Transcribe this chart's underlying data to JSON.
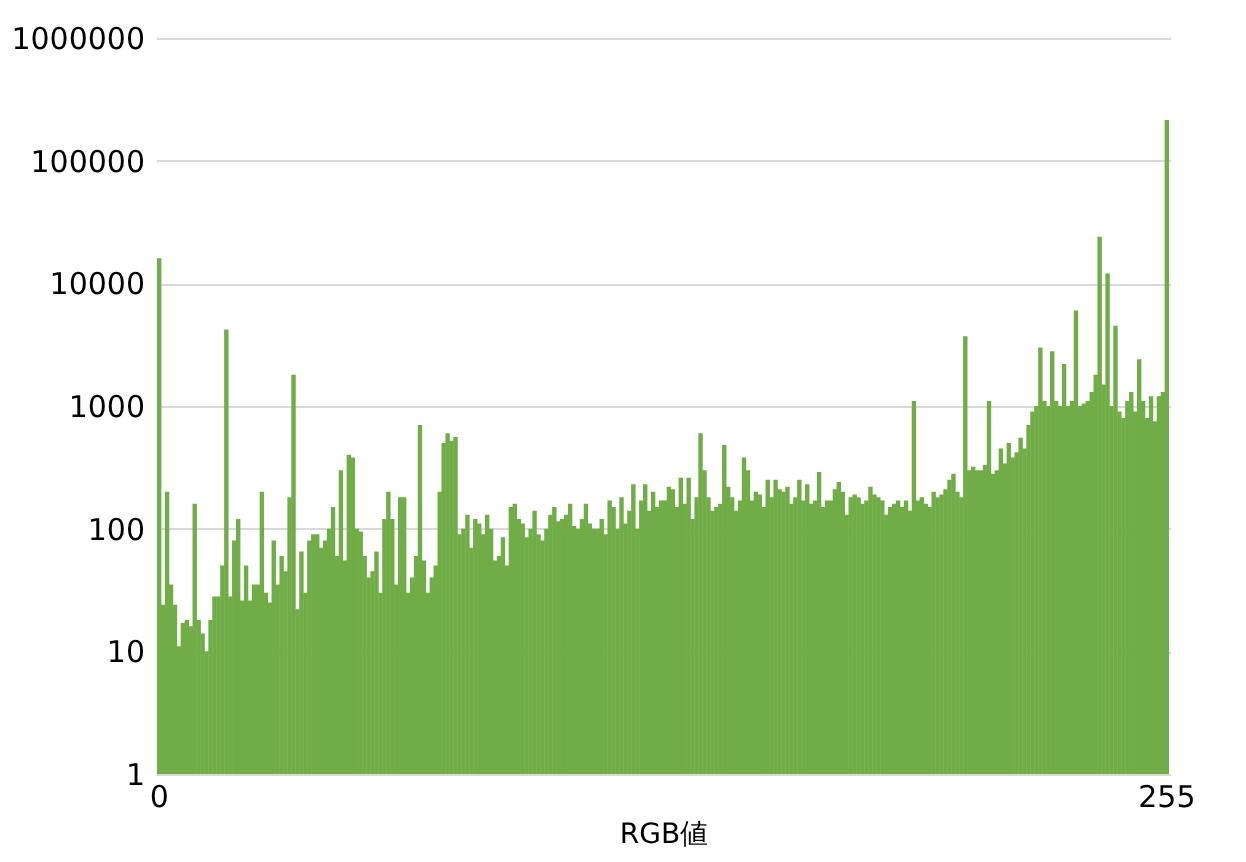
{
  "chart_data": {
    "type": "bar",
    "xlabel": "RGB値",
    "log": true,
    "grid": "y",
    "legend": false,
    "ylim": [
      1,
      1000000
    ],
    "yticks": [
      1,
      10,
      100,
      1000,
      10000,
      100000,
      1000000
    ],
    "categories": [
      "0",
      null,
      null,
      null,
      null,
      null,
      null,
      null,
      null,
      null,
      null,
      null,
      null,
      null,
      null,
      null,
      null,
      null,
      null,
      null,
      null,
      null,
      null,
      null,
      null,
      null,
      null,
      null,
      null,
      null,
      null,
      null,
      null,
      null,
      null,
      null,
      null,
      null,
      null,
      null,
      null,
      null,
      null,
      null,
      null,
      null,
      null,
      null,
      null,
      null,
      null,
      null,
      null,
      null,
      null,
      null,
      null,
      null,
      null,
      null,
      null,
      null,
      null,
      null,
      null,
      null,
      null,
      null,
      null,
      null,
      null,
      null,
      null,
      null,
      null,
      null,
      null,
      null,
      null,
      null,
      null,
      null,
      null,
      null,
      null,
      null,
      null,
      null,
      null,
      null,
      null,
      null,
      null,
      null,
      null,
      null,
      null,
      null,
      null,
      null,
      null,
      null,
      null,
      null,
      null,
      null,
      null,
      null,
      null,
      null,
      null,
      null,
      null,
      null,
      null,
      null,
      null,
      null,
      null,
      null,
      null,
      null,
      null,
      null,
      null,
      null,
      null,
      null,
      null,
      null,
      null,
      null,
      null,
      null,
      null,
      null,
      null,
      null,
      null,
      null,
      null,
      null,
      null,
      null,
      null,
      null,
      null,
      null,
      null,
      null,
      null,
      null,
      null,
      null,
      null,
      null,
      null,
      null,
      null,
      null,
      null,
      null,
      null,
      null,
      null,
      null,
      null,
      null,
      null,
      null,
      null,
      null,
      null,
      null,
      null,
      null,
      null,
      null,
      null,
      null,
      null,
      null,
      null,
      null,
      null,
      null,
      null,
      null,
      null,
      null,
      null,
      null,
      null,
      null,
      null,
      null,
      null,
      null,
      null,
      null,
      null,
      null,
      null,
      null,
      null,
      null,
      null,
      null,
      null,
      null,
      null,
      null,
      null,
      null,
      null,
      null,
      null,
      null,
      null,
      null,
      null,
      null,
      null,
      null,
      null,
      null,
      null,
      null,
      null,
      null,
      null,
      null,
      null,
      null,
      null,
      null,
      null,
      null,
      null,
      null,
      null,
      null,
      null,
      null,
      null,
      null,
      null,
      null,
      null,
      null,
      null,
      null,
      null,
      null,
      null,
      "255"
    ],
    "series": [
      {
        "color": "#70ad47",
        "values": [
          16000,
          24,
          200,
          35,
          24,
          11,
          17,
          18,
          16,
          160,
          18,
          14,
          10,
          18,
          28,
          28,
          50,
          4200,
          28,
          80,
          120,
          26,
          50,
          26,
          35,
          35,
          200,
          30,
          25,
          80,
          35,
          60,
          45,
          180,
          1800,
          22,
          65,
          30,
          80,
          90,
          90,
          70,
          80,
          100,
          150,
          60,
          300,
          55,
          400,
          380,
          100,
          95,
          60,
          40,
          45,
          65,
          30,
          120,
          200,
          120,
          35,
          180,
          180,
          30,
          40,
          60,
          700,
          55,
          30,
          40,
          50,
          200,
          500,
          600,
          520,
          560,
          90,
          100,
          130,
          70,
          120,
          110,
          90,
          130,
          100,
          55,
          60,
          85,
          50,
          150,
          160,
          120,
          110,
          85,
          100,
          140,
          90,
          80,
          100,
          130,
          150,
          115,
          120,
          130,
          160,
          105,
          100,
          120,
          160,
          110,
          100,
          100,
          120,
          90,
          170,
          150,
          100,
          180,
          110,
          140,
          230,
          100,
          170,
          230,
          140,
          200,
          150,
          170,
          170,
          220,
          210,
          150,
          260,
          160,
          260,
          120,
          180,
          600,
          300,
          180,
          140,
          150,
          160,
          480,
          220,
          180,
          140,
          170,
          380,
          300,
          170,
          200,
          190,
          150,
          250,
          180,
          250,
          210,
          200,
          220,
          160,
          180,
          250,
          170,
          230,
          160,
          170,
          290,
          150,
          170,
          170,
          210,
          240,
          200,
          130,
          180,
          190,
          180,
          160,
          170,
          220,
          190,
          180,
          170,
          130,
          150,
          160,
          170,
          150,
          170,
          140,
          1100,
          170,
          180,
          160,
          150,
          200,
          180,
          190,
          210,
          250,
          280,
          200,
          180,
          3700,
          300,
          320,
          300,
          300,
          330,
          1100,
          280,
          300,
          450,
          340,
          500,
          380,
          420,
          550,
          450,
          700,
          900,
          1000,
          3000,
          1100,
          1000,
          2800,
          1100,
          1000,
          2200,
          1000,
          1100,
          6000,
          1000,
          1050,
          1100,
          1300,
          1800,
          24000,
          1500,
          12000,
          1000,
          4500,
          900,
          800,
          1100,
          1300,
          900,
          2400,
          1100,
          800,
          1200,
          750,
          1200,
          1300,
          215000
        ]
      }
    ]
  }
}
